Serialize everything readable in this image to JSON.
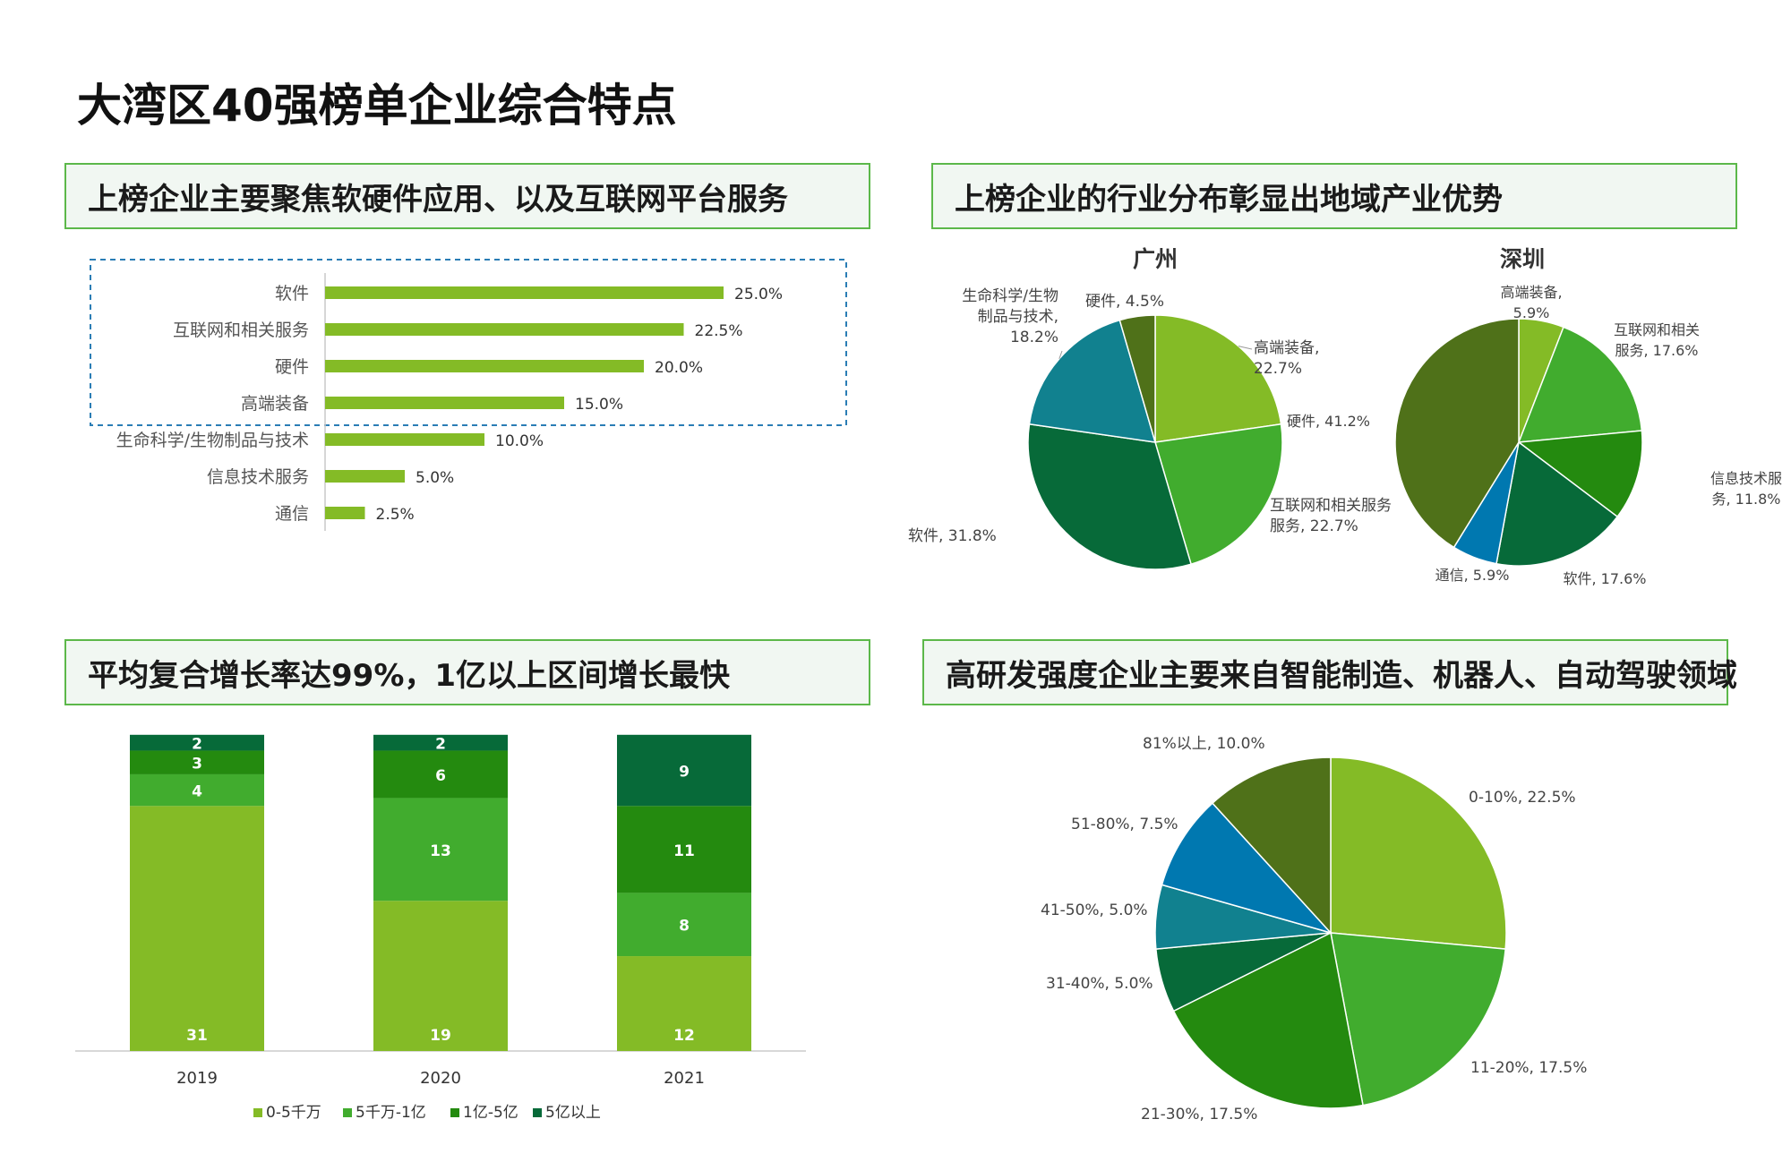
{
  "title": "大湾区40强榜单企业综合特点",
  "sections": {
    "s1": "上榜企业主要聚焦软硬件应用、以及互联网平台服务",
    "s2": "上榜企业的行业分布彰显出地域产业优势",
    "s3": "平均复合增长率达99%，1亿以上区间增长最快",
    "s4": "高研发强度企业主要来自智能制造、机器人、自动驾驶领域"
  },
  "colors": {
    "light_green": "#84bb26",
    "mid_green": "#41ac2e",
    "dark_green": "#248a0f",
    "forest_green": "#076a39",
    "teal": "#11818f",
    "blue": "#0078b0",
    "olive": "#4f7119",
    "highlight_box": "#2a7db5"
  },
  "chart_data": [
    {
      "id": "industry_bar",
      "type": "bar",
      "orientation": "horizontal",
      "categories": [
        "软件",
        "互联网和相关服务",
        "硬件",
        "高端装备",
        "生命科学/生物制品与技术",
        "信息技术服务",
        "通信"
      ],
      "values": [
        25.0,
        22.5,
        20.0,
        15.0,
        10.0,
        5.0,
        2.5
      ],
      "data_labels": [
        "25.0%",
        "22.5%",
        "20.0%",
        "15.0%",
        "10.0%",
        "5.0%",
        "2.5%"
      ],
      "color": "#84bb26",
      "highlight_top_n": 4
    },
    {
      "id": "guangzhou_pie",
      "type": "pie",
      "title": "广州",
      "slices": [
        {
          "label": "高端装备, 22.7%",
          "value": 22.7,
          "color": "#84bb26"
        },
        {
          "label": "互联网和相关服务, 22.7%",
          "value": 22.7,
          "color": "#41ac2e"
        },
        {
          "label": "软件, 31.8%",
          "value": 31.8,
          "color": "#076a39"
        },
        {
          "label": "生命科学/生物制品与技术, 18.2%",
          "value": 18.2,
          "color": "#11818f"
        },
        {
          "label": "硬件, 4.5%",
          "value": 4.5,
          "color": "#4f7119"
        }
      ]
    },
    {
      "id": "shenzhen_pie",
      "type": "pie",
      "title": "深圳",
      "slices": [
        {
          "label": "高端装备, 5.9%",
          "value": 5.9,
          "color": "#84bb26"
        },
        {
          "label": "互联网和相关服务, 17.6%",
          "value": 17.6,
          "color": "#41ac2e"
        },
        {
          "label": "信息技术服务, 11.8%",
          "value": 11.8,
          "color": "#248a0f"
        },
        {
          "label": "软件, 17.6%",
          "value": 17.6,
          "color": "#076a39"
        },
        {
          "label": "通信, 5.9%",
          "value": 5.9,
          "color": "#0078b0"
        },
        {
          "label": "硬件, 41.2%",
          "value": 41.2,
          "color": "#4f7119"
        }
      ]
    },
    {
      "id": "revenue_stacked_bar",
      "type": "bar",
      "stacked": true,
      "categories": [
        "2019",
        "2020",
        "2021"
      ],
      "series": [
        {
          "name": "0-5千万",
          "values": [
            31,
            19,
            12
          ],
          "color": "#84bb26"
        },
        {
          "name": "5千万-1亿",
          "values": [
            4,
            13,
            8
          ],
          "color": "#41ac2e"
        },
        {
          "name": "1亿-5亿",
          "values": [
            3,
            6,
            11
          ],
          "color": "#248a0f"
        },
        {
          "name": "5亿以上",
          "values": [
            2,
            2,
            9
          ],
          "color": "#076a39"
        }
      ],
      "ylim": [
        0,
        40
      ]
    },
    {
      "id": "rd_intensity_pie",
      "type": "pie",
      "slices": [
        {
          "label": "0-10%, 22.5%",
          "value": 22.5,
          "color": "#84bb26"
        },
        {
          "label": "11-20%, 17.5%",
          "value": 17.5,
          "color": "#41ac2e"
        },
        {
          "label": "21-30%, 17.5%",
          "value": 17.5,
          "color": "#248a0f"
        },
        {
          "label": "31-40%, 5.0%",
          "value": 5.0,
          "color": "#076a39"
        },
        {
          "label": "41-50%, 5.0%",
          "value": 5.0,
          "color": "#11818f"
        },
        {
          "label": "51-80%, 7.5%",
          "value": 7.5,
          "color": "#0078b0"
        },
        {
          "label": "81%以上, 10.0%",
          "value": 10.0,
          "color": "#4f7119"
        }
      ]
    }
  ]
}
